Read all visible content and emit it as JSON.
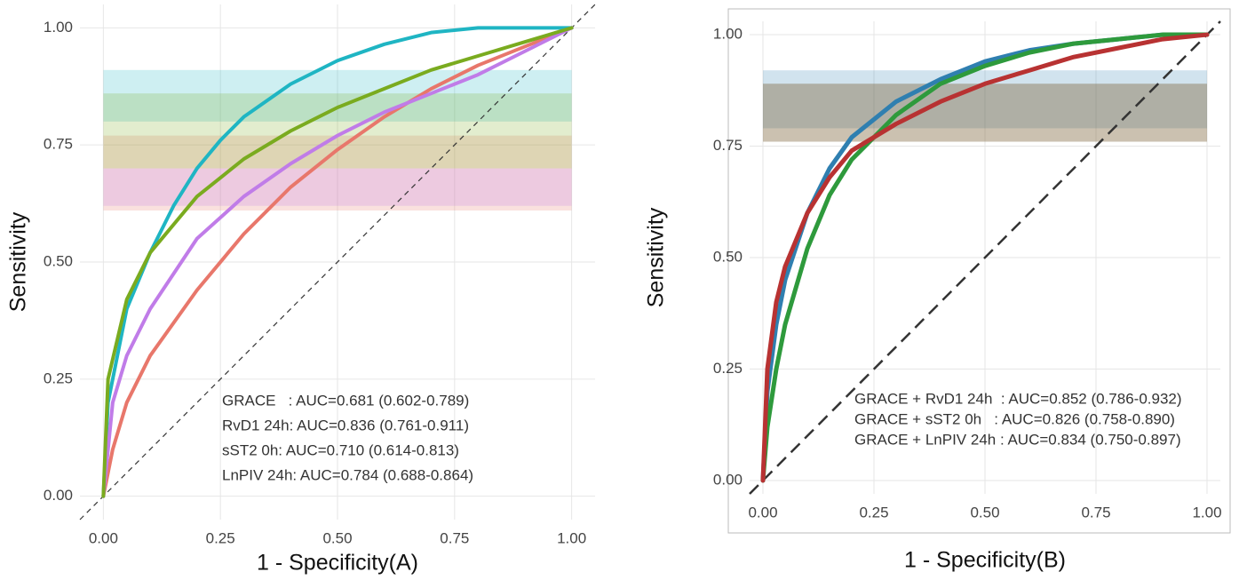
{
  "chart_data": [
    {
      "type": "line",
      "xlabel": "1 - Specificity(A)",
      "ylabel": "Sensitivity",
      "grid": true,
      "reference_line": true,
      "legend": "lower right",
      "xlim": [
        -0.05,
        1.05
      ],
      "ylim": [
        -0.05,
        1.05
      ],
      "xticks": [
        {
          "value": 0,
          "label": "0.00"
        },
        {
          "value": 0.25,
          "label": "0.25"
        },
        {
          "value": 0.5,
          "label": "0.50"
        },
        {
          "value": 0.75,
          "label": "0.75"
        },
        {
          "value": 1,
          "label": "1.00"
        }
      ],
      "yticks": [
        {
          "value": 0,
          "label": "0.00"
        },
        {
          "value": 0.25,
          "label": "0.25"
        },
        {
          "value": 0.5,
          "label": "0.50"
        },
        {
          "value": 0.75,
          "label": "0.75"
        },
        {
          "value": 1,
          "label": "1.00"
        }
      ],
      "series": [
        {
          "name": "GRACE   : AUC=0.681 (0.602-0.789)",
          "color": "#e8776b",
          "ci_band": [
            0.61,
            0.77
          ],
          "x": [
            0,
            0.02,
            0.05,
            0.1,
            0.2,
            0.3,
            0.4,
            0.5,
            0.6,
            0.7,
            0.8,
            0.9,
            1
          ],
          "values": [
            0,
            0.1,
            0.2,
            0.3,
            0.44,
            0.56,
            0.66,
            0.74,
            0.81,
            0.87,
            0.92,
            0.96,
            1
          ]
        },
        {
          "name": "RvD1 24h: AUC=0.836 (0.761-0.911)",
          "color": "#1fb5c3",
          "ci_band": [
            0.8,
            0.91
          ],
          "x": [
            0,
            0.01,
            0.05,
            0.1,
            0.15,
            0.2,
            0.25,
            0.3,
            0.4,
            0.5,
            0.6,
            0.7,
            0.8,
            0.9,
            1
          ],
          "values": [
            0,
            0.2,
            0.4,
            0.52,
            0.62,
            0.7,
            0.76,
            0.81,
            0.88,
            0.93,
            0.965,
            0.99,
            1,
            1,
            1
          ]
        },
        {
          "name": "sST2 0h: AUC=0.710 (0.614-0.813)",
          "color": "#c07ce8",
          "ci_band": [
            0.62,
            0.7
          ],
          "x": [
            0,
            0.02,
            0.05,
            0.1,
            0.2,
            0.3,
            0.4,
            0.5,
            0.6,
            0.7,
            0.8,
            0.9,
            1
          ],
          "values": [
            0,
            0.2,
            0.3,
            0.4,
            0.55,
            0.64,
            0.71,
            0.77,
            0.82,
            0.86,
            0.9,
            0.95,
            1
          ]
        },
        {
          "name": "LnPIV 24h: AUC=0.784 (0.688-0.864)",
          "color": "#7aab1f",
          "ci_band": [
            0.7,
            0.86
          ],
          "x": [
            0,
            0.01,
            0.05,
            0.1,
            0.2,
            0.3,
            0.4,
            0.5,
            0.6,
            0.7,
            0.8,
            0.9,
            1
          ],
          "values": [
            0,
            0.25,
            0.42,
            0.52,
            0.64,
            0.72,
            0.78,
            0.83,
            0.87,
            0.91,
            0.94,
            0.97,
            1
          ]
        }
      ]
    },
    {
      "type": "line",
      "xlabel": "1 - Specificity(B)",
      "ylabel": "Sensitivity",
      "grid": true,
      "reference_line": true,
      "legend": "lower right",
      "xlim": [
        -0.03,
        1.03
      ],
      "ylim": [
        -0.03,
        1.03
      ],
      "xticks": [
        {
          "value": 0,
          "label": "0.00"
        },
        {
          "value": 0.25,
          "label": "0.25"
        },
        {
          "value": 0.5,
          "label": "0.50"
        },
        {
          "value": 0.75,
          "label": "0.75"
        },
        {
          "value": 1,
          "label": "1.00"
        }
      ],
      "yticks": [
        {
          "value": 0,
          "label": "0.00"
        },
        {
          "value": 0.25,
          "label": "0.25"
        },
        {
          "value": 0.5,
          "label": "0.50"
        },
        {
          "value": 0.75,
          "label": "0.75"
        },
        {
          "value": 1,
          "label": "1.00"
        }
      ],
      "series": [
        {
          "name": "GRACE + RvD1 24h  : AUC=0.852 (0.786-0.932)",
          "color": "#2f7fb0",
          "ci_band": [
            0.79,
            0.92
          ],
          "x": [
            0,
            0.01,
            0.03,
            0.05,
            0.1,
            0.15,
            0.2,
            0.3,
            0.4,
            0.5,
            0.6,
            0.7,
            0.8,
            0.9,
            1
          ],
          "values": [
            0,
            0.2,
            0.35,
            0.45,
            0.6,
            0.7,
            0.77,
            0.85,
            0.9,
            0.94,
            0.965,
            0.98,
            0.99,
            1,
            1
          ]
        },
        {
          "name": "GRACE + sST2 0h   : AUC=0.826 (0.758-0.890)",
          "color": "#2e9a3c",
          "ci_band": [
            0.76,
            0.89
          ],
          "x": [
            0,
            0.01,
            0.03,
            0.05,
            0.1,
            0.15,
            0.2,
            0.3,
            0.4,
            0.5,
            0.6,
            0.7,
            0.8,
            0.9,
            1
          ],
          "values": [
            0,
            0.12,
            0.25,
            0.35,
            0.52,
            0.64,
            0.72,
            0.82,
            0.89,
            0.93,
            0.96,
            0.98,
            0.99,
            1,
            1
          ]
        },
        {
          "name": "GRACE + LnPIV 24h : AUC=0.834 (0.750-0.897)",
          "color": "#b83232",
          "ci_band": [
            0.76,
            0.89
          ],
          "x": [
            0,
            0.01,
            0.03,
            0.05,
            0.1,
            0.15,
            0.2,
            0.3,
            0.4,
            0.5,
            0.6,
            0.7,
            0.8,
            0.9,
            1
          ],
          "values": [
            0,
            0.25,
            0.4,
            0.48,
            0.6,
            0.68,
            0.74,
            0.8,
            0.85,
            0.89,
            0.92,
            0.95,
            0.97,
            0.99,
            1
          ]
        }
      ]
    }
  ]
}
